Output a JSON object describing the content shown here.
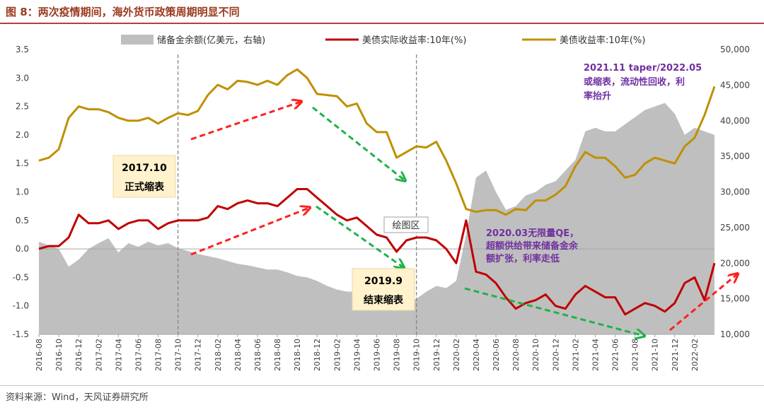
{
  "figure_title": "图 8：两次疫情期间，海外货币政策周期明显不同",
  "source": "资料来源：Wind，天风证券研究所",
  "colors": {
    "reserves": "#bfbfbf",
    "real_yield": "#c00000",
    "nominal_yield": "#bf9000",
    "annotation_purple": "#7030a0",
    "arrow_red": "#ff2020",
    "arrow_green": "#1fb24a",
    "title_red": "#9a3a1f",
    "callout_bg": "#fff2cc"
  },
  "plot_area_label": "绘图区",
  "chart_data": {
    "type": "line",
    "x_tick_labels": [
      "2016-08",
      "2016-10",
      "2016-12",
      "2017-02",
      "2017-04",
      "2017-06",
      "2017-08",
      "2017-10",
      "2017-12",
      "2018-02",
      "2018-04",
      "2018-06",
      "2018-08",
      "2018-10",
      "2018-12",
      "2019-02",
      "2019-04",
      "2019-06",
      "2019-08",
      "2019-10",
      "2019-12",
      "2020-02",
      "2020-04",
      "2020-06",
      "2020-08",
      "2020-10",
      "2020-12",
      "2021-02",
      "2021-04",
      "2021-06",
      "2021-08",
      "2021-10",
      "2021-12",
      "2022-02"
    ],
    "x_range_months": [
      "2016-08",
      "2022-04"
    ],
    "y_left": {
      "lim": [
        -1.5,
        3.5
      ],
      "ticks": [
        "-1.5",
        "-1.0",
        "-0.5",
        "0.0",
        "0.5",
        "1.0",
        "1.5",
        "2.0",
        "2.5",
        "3.0",
        "3.5"
      ]
    },
    "y_right": {
      "lim": [
        10000,
        50000
      ],
      "ticks": [
        "10,000",
        "15,000",
        "20,000",
        "25,000",
        "30,000",
        "35,000",
        "40,000",
        "45,000",
        "50,000"
      ]
    },
    "legend_position": "top",
    "series": [
      {
        "name": "储备金余额(亿美元，右轴)",
        "kind": "area",
        "axis": "right",
        "points": [
          [
            "2016-08",
            23000
          ],
          [
            "2016-10",
            22000
          ],
          [
            "2016-11",
            19500
          ],
          [
            "2016-12",
            20500
          ],
          [
            "2017-01",
            22000
          ],
          [
            "2017-02",
            22800
          ],
          [
            "2017-03",
            23500
          ],
          [
            "2017-04",
            21500
          ],
          [
            "2017-05",
            22800
          ],
          [
            "2017-06",
            22300
          ],
          [
            "2017-07",
            23000
          ],
          [
            "2017-08",
            22500
          ],
          [
            "2017-09",
            22800
          ],
          [
            "2017-10",
            22100
          ],
          [
            "2017-11",
            21700
          ],
          [
            "2017-12",
            21300
          ],
          [
            "2018-01",
            21000
          ],
          [
            "2018-02",
            20700
          ],
          [
            "2018-03",
            20300
          ],
          [
            "2018-04",
            19900
          ],
          [
            "2018-05",
            19700
          ],
          [
            "2018-06",
            19400
          ],
          [
            "2018-07",
            19100
          ],
          [
            "2018-08",
            19100
          ],
          [
            "2018-09",
            18700
          ],
          [
            "2018-10",
            18200
          ],
          [
            "2018-11",
            18000
          ],
          [
            "2018-12",
            17500
          ],
          [
            "2019-01",
            16800
          ],
          [
            "2019-02",
            16300
          ],
          [
            "2019-03",
            16000
          ],
          [
            "2019-04",
            16000
          ],
          [
            "2019-05",
            16200
          ],
          [
            "2019-06",
            16000
          ],
          [
            "2019-07",
            15500
          ],
          [
            "2019-08",
            15000
          ],
          [
            "2019-09",
            14300
          ],
          [
            "2019-10",
            15000
          ],
          [
            "2019-11",
            16000
          ],
          [
            "2019-12",
            16800
          ],
          [
            "2020-01",
            16500
          ],
          [
            "2020-02",
            17500
          ],
          [
            "2020-03",
            24000
          ],
          [
            "2020-04",
            32000
          ],
          [
            "2020-05",
            33000
          ],
          [
            "2020-06",
            30000
          ],
          [
            "2020-07",
            27500
          ],
          [
            "2020-08",
            28000
          ],
          [
            "2020-09",
            29500
          ],
          [
            "2020-10",
            30000
          ],
          [
            "2020-11",
            31000
          ],
          [
            "2020-12",
            31500
          ],
          [
            "2021-01",
            33000
          ],
          [
            "2021-02",
            34500
          ],
          [
            "2021-03",
            38500
          ],
          [
            "2021-04",
            39000
          ],
          [
            "2021-05",
            38500
          ],
          [
            "2021-06",
            38500
          ],
          [
            "2021-07",
            39500
          ],
          [
            "2021-08",
            40500
          ],
          [
            "2021-09",
            41500
          ],
          [
            "2021-10",
            42000
          ],
          [
            "2021-11",
            42500
          ],
          [
            "2021-12",
            41000
          ],
          [
            "2022-01",
            38000
          ],
          [
            "2022-02",
            39000
          ],
          [
            "2022-03",
            38500
          ],
          [
            "2022-04",
            38000
          ]
        ]
      },
      {
        "name": "美债实际收益率:10年(%)",
        "kind": "line",
        "axis": "left",
        "points": [
          [
            "2016-08",
            0.0
          ],
          [
            "2016-09",
            0.05
          ],
          [
            "2016-10",
            0.05
          ],
          [
            "2016-11",
            0.2
          ],
          [
            "2016-12",
            0.6
          ],
          [
            "2017-01",
            0.45
          ],
          [
            "2017-02",
            0.45
          ],
          [
            "2017-03",
            0.5
          ],
          [
            "2017-04",
            0.35
          ],
          [
            "2017-05",
            0.45
          ],
          [
            "2017-06",
            0.5
          ],
          [
            "2017-07",
            0.5
          ],
          [
            "2017-08",
            0.35
          ],
          [
            "2017-09",
            0.45
          ],
          [
            "2017-10",
            0.5
          ],
          [
            "2017-11",
            0.5
          ],
          [
            "2017-12",
            0.5
          ],
          [
            "2018-01",
            0.55
          ],
          [
            "2018-02",
            0.75
          ],
          [
            "2018-03",
            0.7
          ],
          [
            "2018-04",
            0.8
          ],
          [
            "2018-05",
            0.85
          ],
          [
            "2018-06",
            0.8
          ],
          [
            "2018-07",
            0.8
          ],
          [
            "2018-08",
            0.75
          ],
          [
            "2018-09",
            0.9
          ],
          [
            "2018-10",
            1.05
          ],
          [
            "2018-11",
            1.05
          ],
          [
            "2018-12",
            0.9
          ],
          [
            "2019-01",
            0.75
          ],
          [
            "2019-02",
            0.6
          ],
          [
            "2019-03",
            0.5
          ],
          [
            "2019-04",
            0.55
          ],
          [
            "2019-05",
            0.4
          ],
          [
            "2019-06",
            0.25
          ],
          [
            "2019-07",
            0.2
          ],
          [
            "2019-08",
            -0.05
          ],
          [
            "2019-09",
            0.15
          ],
          [
            "2019-10",
            0.2
          ],
          [
            "2019-11",
            0.2
          ],
          [
            "2019-12",
            0.15
          ],
          [
            "2020-01",
            0.0
          ],
          [
            "2020-02",
            -0.25
          ],
          [
            "2020-03",
            0.5
          ],
          [
            "2020-04",
            -0.4
          ],
          [
            "2020-05",
            -0.45
          ],
          [
            "2020-06",
            -0.6
          ],
          [
            "2020-07",
            -0.85
          ],
          [
            "2020-08",
            -1.05
          ],
          [
            "2020-09",
            -0.95
          ],
          [
            "2020-10",
            -0.9
          ],
          [
            "2020-11",
            -0.8
          ],
          [
            "2020-12",
            -1.0
          ],
          [
            "2021-01",
            -1.05
          ],
          [
            "2021-02",
            -0.8
          ],
          [
            "2021-03",
            -0.65
          ],
          [
            "2021-04",
            -0.75
          ],
          [
            "2021-05",
            -0.85
          ],
          [
            "2021-06",
            -0.85
          ],
          [
            "2021-07",
            -1.15
          ],
          [
            "2021-08",
            -1.05
          ],
          [
            "2021-09",
            -0.95
          ],
          [
            "2021-10",
            -1.0
          ],
          [
            "2021-11",
            -1.1
          ],
          [
            "2021-12",
            -0.95
          ],
          [
            "2022-01",
            -0.6
          ],
          [
            "2022-02",
            -0.5
          ],
          [
            "2022-03",
            -0.9
          ],
          [
            "2022-04",
            -0.25
          ]
        ]
      },
      {
        "name": "美债收益率:10年(%)",
        "kind": "line",
        "axis": "left",
        "points": [
          [
            "2016-08",
            1.55
          ],
          [
            "2016-09",
            1.6
          ],
          [
            "2016-10",
            1.75
          ],
          [
            "2016-11",
            2.3
          ],
          [
            "2016-12",
            2.5
          ],
          [
            "2017-01",
            2.45
          ],
          [
            "2017-02",
            2.45
          ],
          [
            "2017-03",
            2.4
          ],
          [
            "2017-04",
            2.3
          ],
          [
            "2017-05",
            2.25
          ],
          [
            "2017-06",
            2.25
          ],
          [
            "2017-07",
            2.3
          ],
          [
            "2017-08",
            2.2
          ],
          [
            "2017-09",
            2.3
          ],
          [
            "2017-10",
            2.38
          ],
          [
            "2017-11",
            2.35
          ],
          [
            "2017-12",
            2.42
          ],
          [
            "2018-01",
            2.7
          ],
          [
            "2018-02",
            2.88
          ],
          [
            "2018-03",
            2.8
          ],
          [
            "2018-04",
            2.95
          ],
          [
            "2018-05",
            2.93
          ],
          [
            "2018-06",
            2.88
          ],
          [
            "2018-07",
            2.95
          ],
          [
            "2018-08",
            2.88
          ],
          [
            "2018-09",
            3.05
          ],
          [
            "2018-10",
            3.15
          ],
          [
            "2018-11",
            3.0
          ],
          [
            "2018-12",
            2.72
          ],
          [
            "2019-01",
            2.7
          ],
          [
            "2019-02",
            2.68
          ],
          [
            "2019-03",
            2.5
          ],
          [
            "2019-04",
            2.55
          ],
          [
            "2019-05",
            2.2
          ],
          [
            "2019-06",
            2.05
          ],
          [
            "2019-07",
            2.05
          ],
          [
            "2019-08",
            1.6
          ],
          [
            "2019-09",
            1.7
          ],
          [
            "2019-10",
            1.8
          ],
          [
            "2019-11",
            1.78
          ],
          [
            "2019-12",
            1.88
          ],
          [
            "2020-01",
            1.55
          ],
          [
            "2020-02",
            1.15
          ],
          [
            "2020-03",
            0.7
          ],
          [
            "2020-04",
            0.65
          ],
          [
            "2020-05",
            0.68
          ],
          [
            "2020-06",
            0.68
          ],
          [
            "2020-07",
            0.6
          ],
          [
            "2020-08",
            0.7
          ],
          [
            "2020-09",
            0.68
          ],
          [
            "2020-10",
            0.85
          ],
          [
            "2020-11",
            0.85
          ],
          [
            "2020-12",
            0.95
          ],
          [
            "2021-01",
            1.1
          ],
          [
            "2021-02",
            1.45
          ],
          [
            "2021-03",
            1.7
          ],
          [
            "2021-04",
            1.6
          ],
          [
            "2021-05",
            1.6
          ],
          [
            "2021-06",
            1.45
          ],
          [
            "2021-07",
            1.25
          ],
          [
            "2021-08",
            1.3
          ],
          [
            "2021-09",
            1.5
          ],
          [
            "2021-10",
            1.6
          ],
          [
            "2021-11",
            1.55
          ],
          [
            "2021-12",
            1.5
          ],
          [
            "2022-01",
            1.8
          ],
          [
            "2022-02",
            1.95
          ],
          [
            "2022-03",
            2.35
          ],
          [
            "2022-04",
            2.85
          ]
        ]
      }
    ],
    "vertical_markers": [
      "2017-10",
      "2019-10"
    ],
    "callouts": [
      {
        "lines": [
          "2017.10",
          "正式缩表"
        ],
        "anchor": [
          "2017-09",
          1.2
        ]
      },
      {
        "lines": [
          "2019.9",
          "结束缩表"
        ],
        "anchor": [
          "2019-09",
          -0.75
        ]
      }
    ],
    "annotations": [
      {
        "lines": [
          "2021.11 taper/2022.05",
          "或缩表，流动性回收，利",
          "率抬升"
        ],
        "anchor": [
          "2021-04",
          2.9
        ]
      },
      {
        "lines": [
          "2020.03无限量QE，",
          "超额供给带来储备金余",
          "额扩张，利率走低"
        ],
        "anchor": [
          "2020-05",
          0.3
        ]
      }
    ]
  }
}
